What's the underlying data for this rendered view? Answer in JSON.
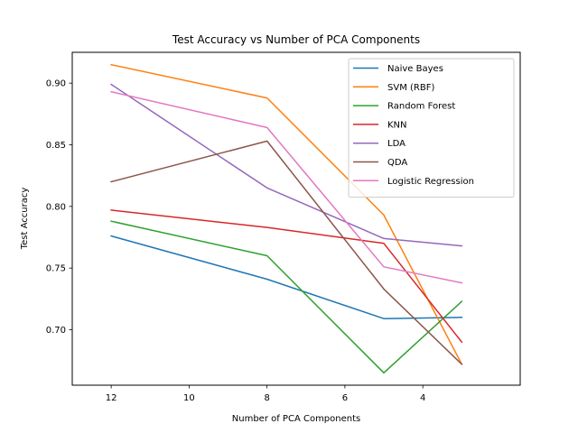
{
  "chart_data": {
    "type": "line",
    "title": "Test Accuracy vs Number of PCA Components",
    "xlabel": "Number of PCA Components",
    "ylabel": "Test Accuracy",
    "xlim": [
      13.0,
      1.5
    ],
    "ylim": [
      0.655,
      0.925
    ],
    "x_ticks": [
      12,
      10,
      8,
      6,
      4
    ],
    "y_ticks": [
      0.7,
      0.75,
      0.8,
      0.85,
      0.9
    ],
    "x_tick_labels": [
      "12",
      "10",
      "8",
      "6",
      "4"
    ],
    "y_tick_labels": [
      "0.70",
      "0.75",
      "0.80",
      "0.85",
      "0.90"
    ],
    "x": [
      12,
      8,
      5,
      3
    ],
    "grid": false,
    "legend_position": "top-right",
    "series": [
      {
        "name": "Naive Bayes",
        "color": "#1f77b4",
        "values": [
          0.776,
          0.741,
          0.709,
          0.71
        ]
      },
      {
        "name": "SVM (RBF)",
        "color": "#ff7f0e",
        "values": [
          0.915,
          0.888,
          0.793,
          0.672
        ]
      },
      {
        "name": "Random Forest",
        "color": "#2ca02c",
        "values": [
          0.788,
          0.76,
          0.665,
          0.723
        ]
      },
      {
        "name": "KNN",
        "color": "#d62728",
        "values": [
          0.797,
          0.783,
          0.77,
          0.69
        ]
      },
      {
        "name": "LDA",
        "color": "#9467bd",
        "values": [
          0.899,
          0.815,
          0.774,
          0.768
        ]
      },
      {
        "name": "QDA",
        "color": "#8c564b",
        "values": [
          0.82,
          0.853,
          0.733,
          0.672
        ]
      },
      {
        "name": "Logistic Regression",
        "color": "#e377c2",
        "values": [
          0.893,
          0.864,
          0.751,
          0.738
        ]
      }
    ]
  }
}
